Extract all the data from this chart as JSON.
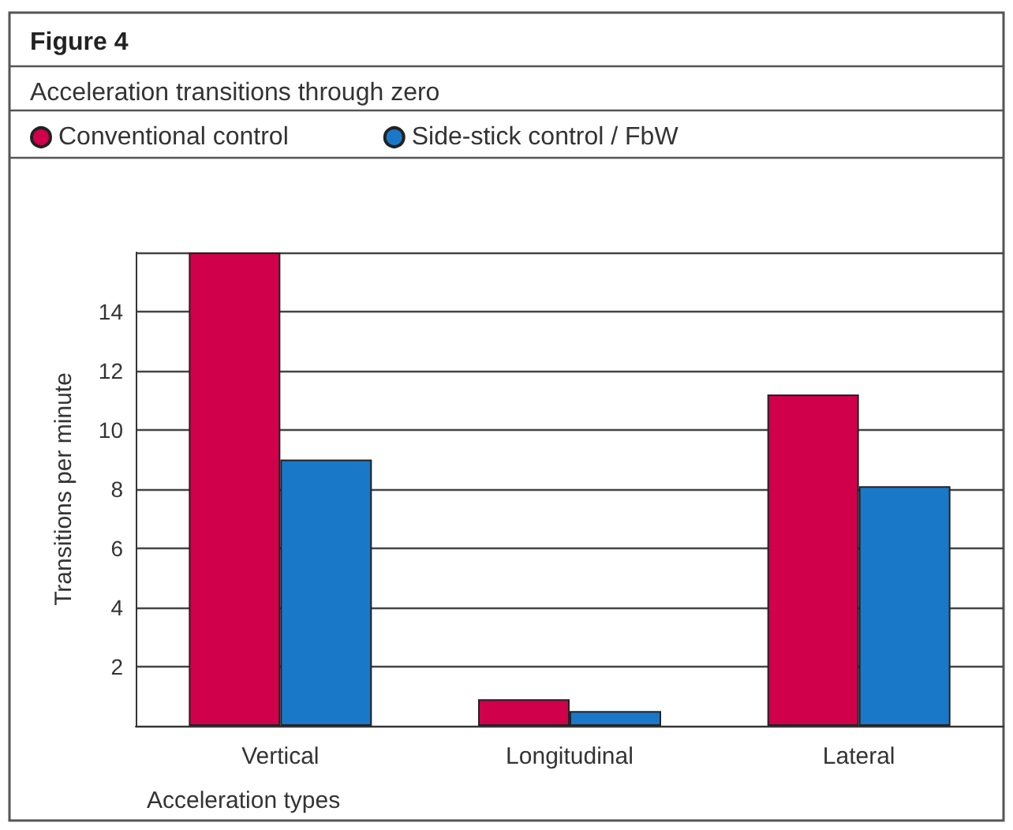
{
  "chart_data": {
    "type": "bar",
    "title": "Figure 4",
    "subtitle": "Acceleration transitions through zero",
    "xlabel": "Acceleration types",
    "ylabel": "Transitions per minute",
    "categories": [
      "Vertical",
      "Longitudinal",
      "Lateral"
    ],
    "series": [
      {
        "name": "Conventional control",
        "color": "#d0004a",
        "values": [
          16,
          0.9,
          11.2
        ]
      },
      {
        "name": "Side-stick control / FbW",
        "color": "#1a78c8",
        "values": [
          9,
          0.5,
          8.1
        ]
      }
    ],
    "ylim": [
      0,
      16
    ],
    "yticks": [
      {
        "value": 0,
        "label": null
      },
      2,
      4,
      6,
      8,
      10,
      12,
      14,
      {
        "value": 16,
        "label": null
      }
    ],
    "grid": "y",
    "legend": "top left"
  }
}
